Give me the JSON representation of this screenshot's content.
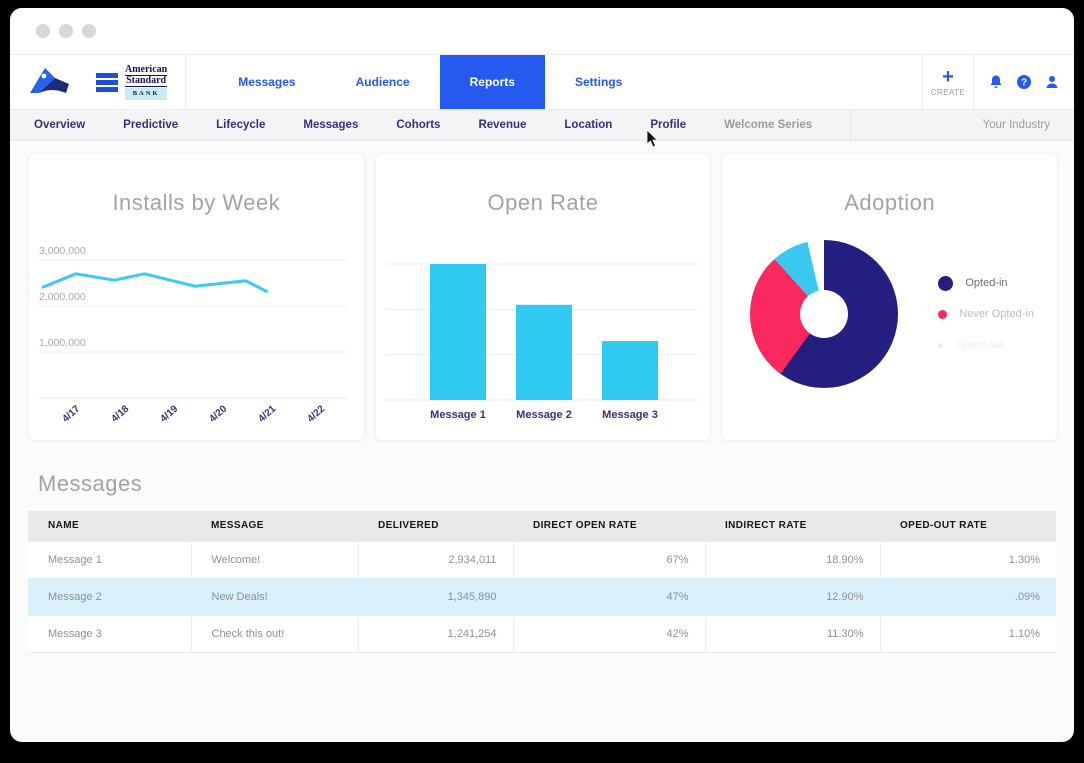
{
  "brand": {
    "logo": "mountain-logo",
    "bank": {
      "line1": "American",
      "line2": "Standard",
      "sub": "BANK"
    }
  },
  "top_nav": {
    "items": [
      {
        "label": "Messages",
        "active": false
      },
      {
        "label": "Audience",
        "active": false
      },
      {
        "label": "Reports",
        "active": true
      },
      {
        "label": "Settings",
        "active": false
      }
    ],
    "create_label": "CREATE",
    "create_plus": "+",
    "icons": [
      "bell-icon",
      "help-icon",
      "user-icon"
    ]
  },
  "sub_nav": {
    "items": [
      {
        "label": "Overview"
      },
      {
        "label": "Predictive"
      },
      {
        "label": "Lifecycle"
      },
      {
        "label": "Messages"
      },
      {
        "label": "Cohorts"
      },
      {
        "label": "Revenue"
      },
      {
        "label": "Location"
      },
      {
        "label": "Profile"
      },
      {
        "label": "Welcome Series",
        "muted": true
      }
    ],
    "right_label": "Your Industry"
  },
  "accent_colors": {
    "nav_blue": "#2559f0",
    "navy_text": "#32317c",
    "title_gray": "#a3a3a3",
    "row_highlight": "#d8f1fc"
  },
  "chart_data": [
    {
      "type": "line",
      "title": "Installs by Week",
      "x_tick_labels": [
        "4/17",
        "4/18",
        "4/19",
        "4/20",
        "4/21",
        "4/22"
      ],
      "y_ticks": [
        {
          "label": "3,000,000",
          "value": 3000000
        },
        {
          "label": "2,000,000",
          "value": 2000000
        },
        {
          "label": "1,000,000",
          "value": 1000000
        }
      ],
      "ylim": [
        0,
        3650000
      ],
      "points": [
        {
          "x_frac": 0.0,
          "value": 2410000
        },
        {
          "x_frac": 0.11,
          "value": 2700000
        },
        {
          "x_frac": 0.24,
          "value": 2560000
        },
        {
          "x_frac": 0.34,
          "value": 2700000
        },
        {
          "x_frac": 0.51,
          "value": 2430000
        },
        {
          "x_frac": 0.68,
          "value": 2550000
        },
        {
          "x_frac": 0.75,
          "value": 2320000
        }
      ],
      "line_color": "#3cc9f2",
      "grid": true,
      "legend_position": "none"
    },
    {
      "type": "bar",
      "title": "Open Rate",
      "categories": [
        "Message 1",
        "Message 2",
        "Message 3"
      ],
      "values": [
        60,
        42,
        26
      ],
      "gridline_values": [
        20,
        40,
        60
      ],
      "ylim": [
        0,
        75
      ],
      "bar_color": "#2fc9f2",
      "label_color": "#32317c",
      "grid": true,
      "legend_position": "none"
    },
    {
      "type": "pie",
      "title": "Adoption",
      "slices": [
        {
          "label": "Opted-in",
          "pct": 60.0,
          "color": "#241e80"
        },
        {
          "label": "Never Opted-in",
          "pct": 28.3,
          "color": "#f9295f"
        },
        {
          "label": "Opted-out",
          "pct": 8.1,
          "color": "#3bc8f0"
        },
        {
          "label": "gap",
          "pct": 3.6,
          "color": "#ffffff"
        }
      ],
      "legend_position": "right",
      "legend": [
        {
          "label": "Opted-in",
          "dot_color": "#241e80",
          "text_color": "#6e6e6e",
          "dot_size": 15
        },
        {
          "label": "Never Opted-in",
          "dot_color": "#f9295f",
          "text_color": "#bdbdbd",
          "dot_size": 9
        },
        {
          "label": "Opted-out",
          "dot_color": "#e9e9ec",
          "text_color": "#ededf0",
          "dot_size": 5
        }
      ]
    }
  ],
  "messages_section": {
    "title": "Messages",
    "table": {
      "columns": [
        "NAME",
        "MESSAGE",
        "DELIVERED",
        "DIRECT OPEN RATE",
        "INDIRECT RATE",
        "OPED-OUT RATE"
      ],
      "rows": [
        [
          "Message 1",
          "Welcome!",
          "2,934,011",
          "67%",
          "18.90%",
          "1.30%"
        ],
        [
          "Message 2",
          "New Deals!",
          "1,345,890",
          "47%",
          "12.90%",
          ".09%"
        ],
        [
          "Message 3",
          "Check this out!",
          "1,241,254",
          "42%",
          "11.30%",
          "1.10%"
        ]
      ],
      "highlighted_row_index": 1
    }
  }
}
